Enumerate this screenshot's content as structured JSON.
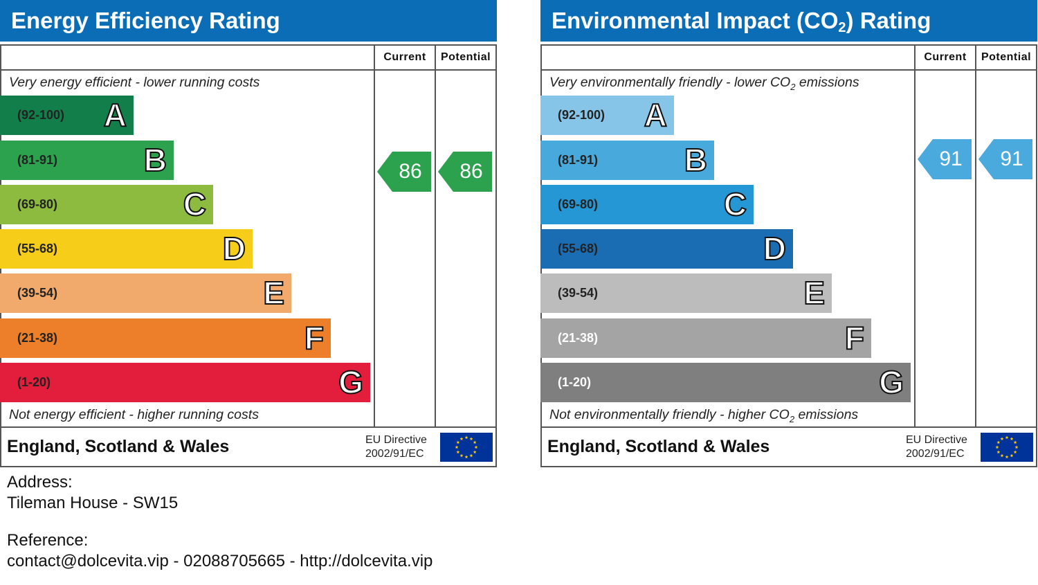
{
  "charts": [
    {
      "id": "energy",
      "title_text": "Energy Efficiency Rating",
      "title_sub": "",
      "title_after": "",
      "top_caption": {
        "text": "Very energy efficient - lower running costs",
        "sub": "",
        "after": ""
      },
      "bottom_caption": {
        "text": "Not energy efficient - higher running costs",
        "sub": "",
        "after": ""
      },
      "current_label": "Current",
      "potential_label": "Potential",
      "current_value": 86,
      "potential_value": 86,
      "current_value_text": "86",
      "potential_value_text": "86",
      "arrow_color": "#2ca24e",
      "region": "England, Scotland & Wales",
      "eu_line1": "EU Directive",
      "eu_line2": "2002/91/EC",
      "bands": [
        {
          "range": "(92-100)",
          "letter": "A",
          "color": "#127f4a",
          "light": false
        },
        {
          "range": "(81-91)",
          "letter": "B",
          "color": "#2ca24e",
          "light": false
        },
        {
          "range": "(69-80)",
          "letter": "C",
          "color": "#8cbb3f",
          "light": false
        },
        {
          "range": "(55-68)",
          "letter": "D",
          "color": "#f6cd18",
          "light": false
        },
        {
          "range": "(39-54)",
          "letter": "E",
          "color": "#f1a96c",
          "light": false
        },
        {
          "range": "(21-38)",
          "letter": "F",
          "color": "#ed7f2a",
          "light": false
        },
        {
          "range": "(1-20)",
          "letter": "G",
          "color": "#e31d3c",
          "light": false
        }
      ]
    },
    {
      "id": "environment",
      "title_text": "Environmental Impact (CO",
      "title_sub": "2",
      "title_after": ") Rating",
      "top_caption": {
        "text": "Very environmentally friendly - lower CO",
        "sub": "2",
        "after": " emissions"
      },
      "bottom_caption": {
        "text": "Not environmentally friendly - higher CO",
        "sub": "2",
        "after": " emissions"
      },
      "current_label": "Current",
      "potential_label": "Potential",
      "current_value": 91,
      "potential_value": 91,
      "current_value_text": "91",
      "potential_value_text": "91",
      "arrow_color": "#4aa9dd",
      "region": "England, Scotland & Wales",
      "eu_line1": "EU Directive",
      "eu_line2": "2002/91/EC",
      "bands": [
        {
          "range": "(92-100)",
          "letter": "A",
          "color": "#86c4e8",
          "light": false
        },
        {
          "range": "(81-91)",
          "letter": "B",
          "color": "#48a9dd",
          "light": false
        },
        {
          "range": "(69-80)",
          "letter": "C",
          "color": "#2597d4",
          "light": false
        },
        {
          "range": "(55-68)",
          "letter": "D",
          "color": "#1b6db3",
          "light": false
        },
        {
          "range": "(39-54)",
          "letter": "E",
          "color": "#bcbcbc",
          "light": false
        },
        {
          "range": "(21-38)",
          "letter": "F",
          "color": "#a4a4a4",
          "light": true
        },
        {
          "range": "(1-20)",
          "letter": "G",
          "color": "#7f7f7f",
          "light": true
        }
      ]
    }
  ],
  "info": {
    "address_label": "Address:",
    "address_value": "Tileman House - SW15",
    "reference_label": "Reference:",
    "reference_value": "contact@dolcevita.vip - 02088705665 - http://dolcevita.vip"
  }
}
